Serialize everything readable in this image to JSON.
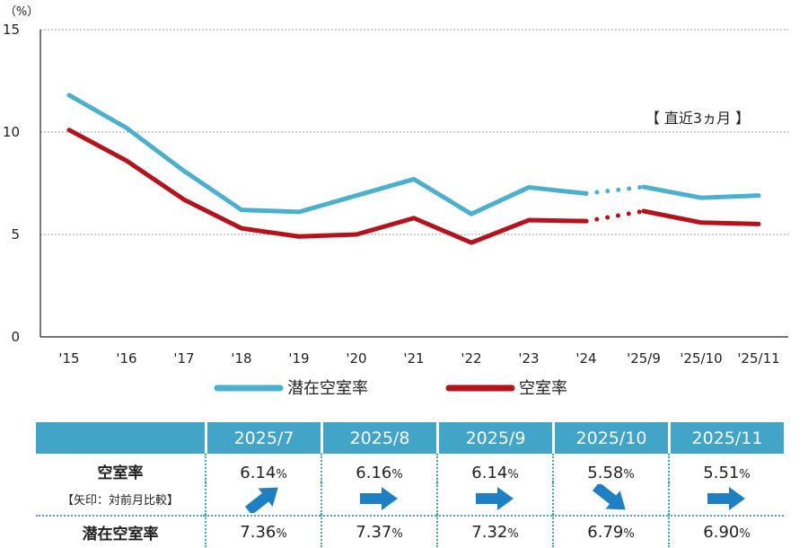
{
  "chart_data": {
    "type": "line",
    "unit_label": "（%）",
    "categories": [
      "'15",
      "'16",
      "'17",
      "'18",
      "'19",
      "'20",
      "'21",
      "'22",
      "'23",
      "'24",
      "'25/9",
      "'25/10",
      "'25/11"
    ],
    "yticks": [
      0,
      5,
      10,
      15
    ],
    "ylim": [
      0,
      15
    ],
    "grid": true,
    "legend_position": "bottom",
    "annotation": "【 直近3ヵ月 】",
    "series": [
      {
        "name": "潜在空室率",
        "color": "#4bb0d0",
        "values": [
          11.8,
          10.2,
          8.1,
          6.2,
          6.1,
          6.9,
          7.7,
          6.0,
          7.3,
          7.0,
          7.32,
          6.79,
          6.9
        ]
      },
      {
        "name": "空室率",
        "color": "#b5121b",
        "values": [
          10.1,
          8.6,
          6.7,
          5.3,
          4.9,
          5.0,
          5.8,
          4.6,
          5.7,
          5.65,
          6.14,
          5.58,
          5.51
        ]
      }
    ],
    "dotted_segment": {
      "from_index": 9,
      "to_index": 10
    }
  },
  "table": {
    "months": [
      "2025/7",
      "2025/8",
      "2025/9",
      "2025/10",
      "2025/11"
    ],
    "vacancy_label": "空室率",
    "arrow_note": "【矢印：対前月比較】",
    "potential_label": "潜在空室率",
    "vacancy_values": [
      "6.14",
      "6.16",
      "6.14",
      "5.58",
      "5.51"
    ],
    "arrows": [
      "up-right",
      "right",
      "right",
      "down-right",
      "right"
    ],
    "potential_values": [
      "7.36",
      "7.37",
      "7.32",
      "6.79",
      "6.90"
    ],
    "pct_sign": "%",
    "arrow_color": "#1e7fc2"
  }
}
